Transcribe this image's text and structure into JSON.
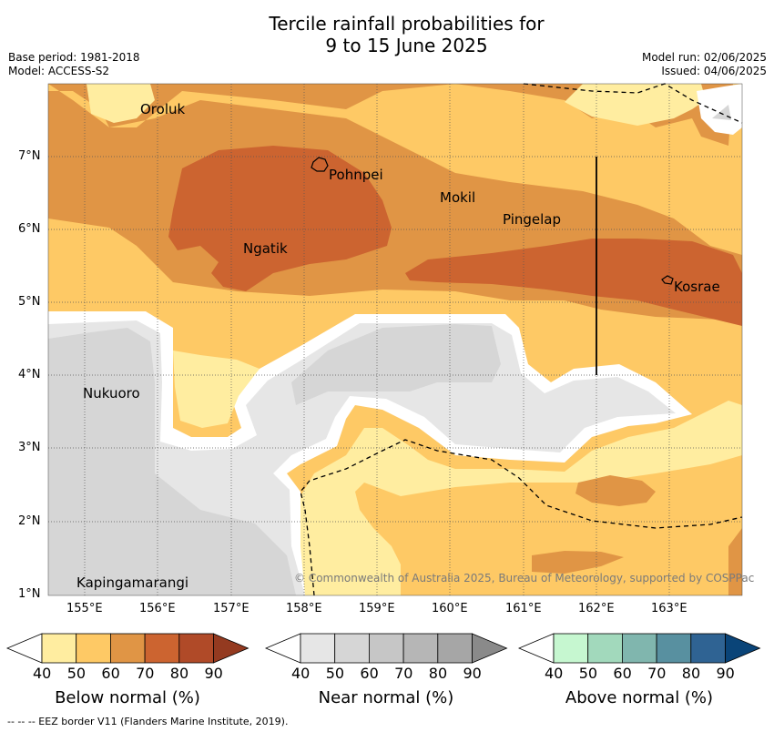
{
  "header": {
    "title_line1": "Tercile rainfall probabilities for",
    "title_line2": "9 to 15 June 2025",
    "base_period": "Base period: 1981-2018",
    "model": "Model: ACCESS-S2",
    "model_run": "Model run: 02/06/2025",
    "issued": "Issued: 04/06/2025"
  },
  "map": {
    "lat_ticks": [
      "7°N",
      "6°N",
      "5°N",
      "4°N",
      "3°N",
      "2°N",
      "1°N"
    ],
    "lon_ticks": [
      "155°E",
      "156°E",
      "157°E",
      "158°E",
      "159°E",
      "160°E",
      "161°E",
      "162°E",
      "163°E"
    ],
    "places": [
      "Oroluk",
      "Pohnpei",
      "Mokil",
      "Pingelap",
      "Ngatik",
      "Kosrae",
      "Nukuoro",
      "Kapingamarangi"
    ],
    "copyright": "© Commonwealth of Australia 2025, Bureau of Meteorology, supported by COSPPac"
  },
  "colorbars": [
    {
      "label": "Below normal (%)",
      "ticks": [
        "40",
        "50",
        "60",
        "70",
        "80",
        "90"
      ],
      "colors": [
        "#ffeda0",
        "#fec965",
        "#e09545",
        "#cc6430",
        "#b04a28",
        "#943a20"
      ]
    },
    {
      "label": "Near normal (%)",
      "ticks": [
        "40",
        "50",
        "60",
        "70",
        "80",
        "90"
      ],
      "colors": [
        "#e6e6e6",
        "#d6d6d6",
        "#c6c6c6",
        "#b6b6b6",
        "#a6a6a6",
        "#8a8a8a"
      ]
    },
    {
      "label": "Above normal (%)",
      "ticks": [
        "40",
        "50",
        "60",
        "70",
        "80",
        "90"
      ],
      "colors": [
        "#c6f7d0",
        "#a2d9bc",
        "#80b6ae",
        "#5890a0",
        "#2f6393",
        "#0a4478"
      ]
    }
  ],
  "footer": "--  --  -- EEZ border V11 (Flanders Marine Institute, 2019)."
}
